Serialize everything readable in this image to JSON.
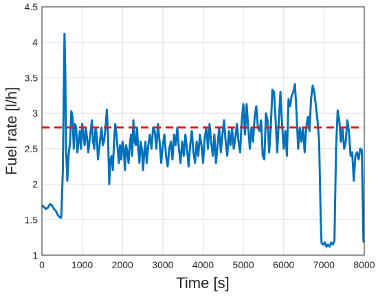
{
  "chart_data": {
    "type": "line",
    "xlabel": "Time [s]",
    "ylabel": "Fuel rate [l/h]",
    "x": [
      0,
      50,
      100,
      150,
      200,
      250,
      300,
      350,
      400,
      450,
      480,
      520,
      560,
      580,
      600,
      630,
      660,
      700,
      730,
      760,
      790,
      820,
      850,
      880,
      910,
      940,
      970,
      1000,
      1030,
      1060,
      1090,
      1120,
      1150,
      1180,
      1210,
      1240,
      1270,
      1300,
      1330,
      1360,
      1390,
      1420,
      1450,
      1480,
      1510,
      1540,
      1580,
      1610,
      1640,
      1670,
      1700,
      1730,
      1760,
      1790,
      1820,
      1850,
      1880,
      1910,
      1940,
      1970,
      2000,
      2030,
      2060,
      2090,
      2120,
      2150,
      2180,
      2210,
      2240,
      2270,
      2300,
      2330,
      2360,
      2390,
      2420,
      2450,
      2480,
      2510,
      2540,
      2570,
      2600,
      2640,
      2680,
      2720,
      2760,
      2800,
      2840,
      2880,
      2920,
      2960,
      3000,
      3040,
      3080,
      3120,
      3160,
      3200,
      3240,
      3280,
      3320,
      3360,
      3400,
      3440,
      3480,
      3520,
      3560,
      3600,
      3640,
      3680,
      3720,
      3760,
      3800,
      3840,
      3880,
      3920,
      3960,
      4000,
      4040,
      4080,
      4120,
      4160,
      4200,
      4240,
      4280,
      4320,
      4360,
      4400,
      4440,
      4480,
      4520,
      4560,
      4600,
      4640,
      4680,
      4720,
      4760,
      4800,
      4840,
      4880,
      4920,
      4960,
      5000,
      5040,
      5080,
      5120,
      5160,
      5200,
      5240,
      5280,
      5320,
      5360,
      5400,
      5440,
      5480,
      5520,
      5560,
      5600,
      5640,
      5680,
      5720,
      5760,
      5800,
      5840,
      5880,
      5920,
      5960,
      6000,
      6040,
      6080,
      6120,
      6160,
      6200,
      6240,
      6280,
      6320,
      6360,
      6400,
      6440,
      6480,
      6520,
      6560,
      6600,
      6640,
      6680,
      6720,
      6760,
      6800,
      6840,
      6880,
      6920,
      6940,
      6980,
      7020,
      7060,
      7100,
      7140,
      7180,
      7220,
      7260,
      7300,
      7340,
      7380,
      7420,
      7460,
      7500,
      7540,
      7580,
      7620,
      7660,
      7700,
      7740,
      7780,
      7820,
      7860,
      7900,
      7940,
      7980,
      8000
    ],
    "series": [
      {
        "color": "#0072bd",
        "values": [
          1.7,
          1.68,
          1.65,
          1.67,
          1.72,
          1.7,
          1.65,
          1.62,
          1.56,
          1.53,
          1.53,
          2.2,
          4.12,
          3.6,
          2.5,
          2.05,
          2.4,
          2.6,
          3.03,
          2.95,
          2.5,
          2.85,
          2.8,
          2.45,
          2.6,
          2.75,
          2.5,
          2.85,
          2.7,
          2.55,
          2.8,
          2.65,
          2.45,
          2.6,
          2.75,
          2.9,
          2.6,
          2.5,
          2.8,
          2.7,
          2.35,
          2.5,
          2.65,
          2.8,
          2.55,
          2.6,
          2.8,
          3.05,
          2.7,
          2.0,
          2.35,
          2.4,
          2.2,
          2.6,
          2.85,
          2.7,
          2.5,
          2.3,
          2.55,
          2.35,
          2.6,
          2.5,
          2.2,
          2.55,
          2.45,
          2.3,
          2.55,
          2.7,
          2.4,
          2.9,
          2.6,
          2.55,
          2.8,
          2.5,
          2.3,
          2.6,
          2.5,
          2.2,
          2.45,
          2.6,
          2.3,
          2.55,
          2.7,
          2.5,
          2.8,
          2.75,
          2.5,
          2.85,
          2.6,
          2.3,
          2.55,
          2.7,
          2.4,
          2.25,
          2.5,
          2.6,
          2.35,
          2.7,
          2.55,
          2.8,
          2.5,
          2.3,
          2.6,
          2.4,
          2.7,
          2.5,
          2.25,
          2.55,
          2.75,
          2.45,
          2.3,
          2.6,
          2.4,
          2.7,
          2.55,
          2.3,
          2.65,
          2.8,
          2.5,
          2.85,
          2.6,
          2.4,
          2.7,
          2.3,
          2.55,
          2.8,
          2.45,
          2.7,
          2.9,
          2.6,
          2.4,
          2.75,
          2.55,
          2.8,
          2.5,
          2.65,
          2.85,
          2.6,
          2.45,
          2.9,
          3.13,
          2.7,
          3.13,
          2.8,
          2.5,
          2.8,
          2.6,
          2.95,
          3.1,
          2.8,
          2.75,
          2.9,
          2.4,
          2.35,
          3.0,
          2.9,
          2.45,
          2.8,
          3.33,
          3.3,
          2.9,
          2.45,
          2.9,
          3.3,
          2.85,
          2.5,
          2.75,
          2.4,
          3.2,
          3.1,
          3.25,
          3.3,
          3.41,
          3.0,
          2.5,
          2.8,
          2.6,
          2.8,
          2.45,
          2.8,
          2.95,
          2.75,
          3.2,
          3.39,
          3.3,
          3.1,
          2.9,
          2.6,
          1.5,
          1.17,
          1.15,
          1.18,
          1.12,
          1.15,
          1.12,
          1.18,
          1.15,
          1.2,
          2.5,
          3.04,
          2.9,
          2.6,
          2.8,
          2.5,
          2.6,
          2.9,
          2.75,
          2.4,
          2.45,
          2.05,
          2.4,
          2.45,
          2.35,
          2.5,
          2.48,
          1.2,
          1.18
        ]
      }
    ],
    "reference_line": {
      "value": 2.8,
      "color": "#e41a1c",
      "dashed": true
    },
    "xlim": [
      0,
      8000
    ],
    "xticks": [
      0,
      1000,
      2000,
      3000,
      4000,
      5000,
      6000,
      7000,
      8000
    ],
    "ylim": [
      1,
      4.5
    ],
    "yticks": [
      1,
      1.5,
      2,
      2.5,
      3,
      3.5,
      4,
      4.5
    ],
    "grid": true
  }
}
